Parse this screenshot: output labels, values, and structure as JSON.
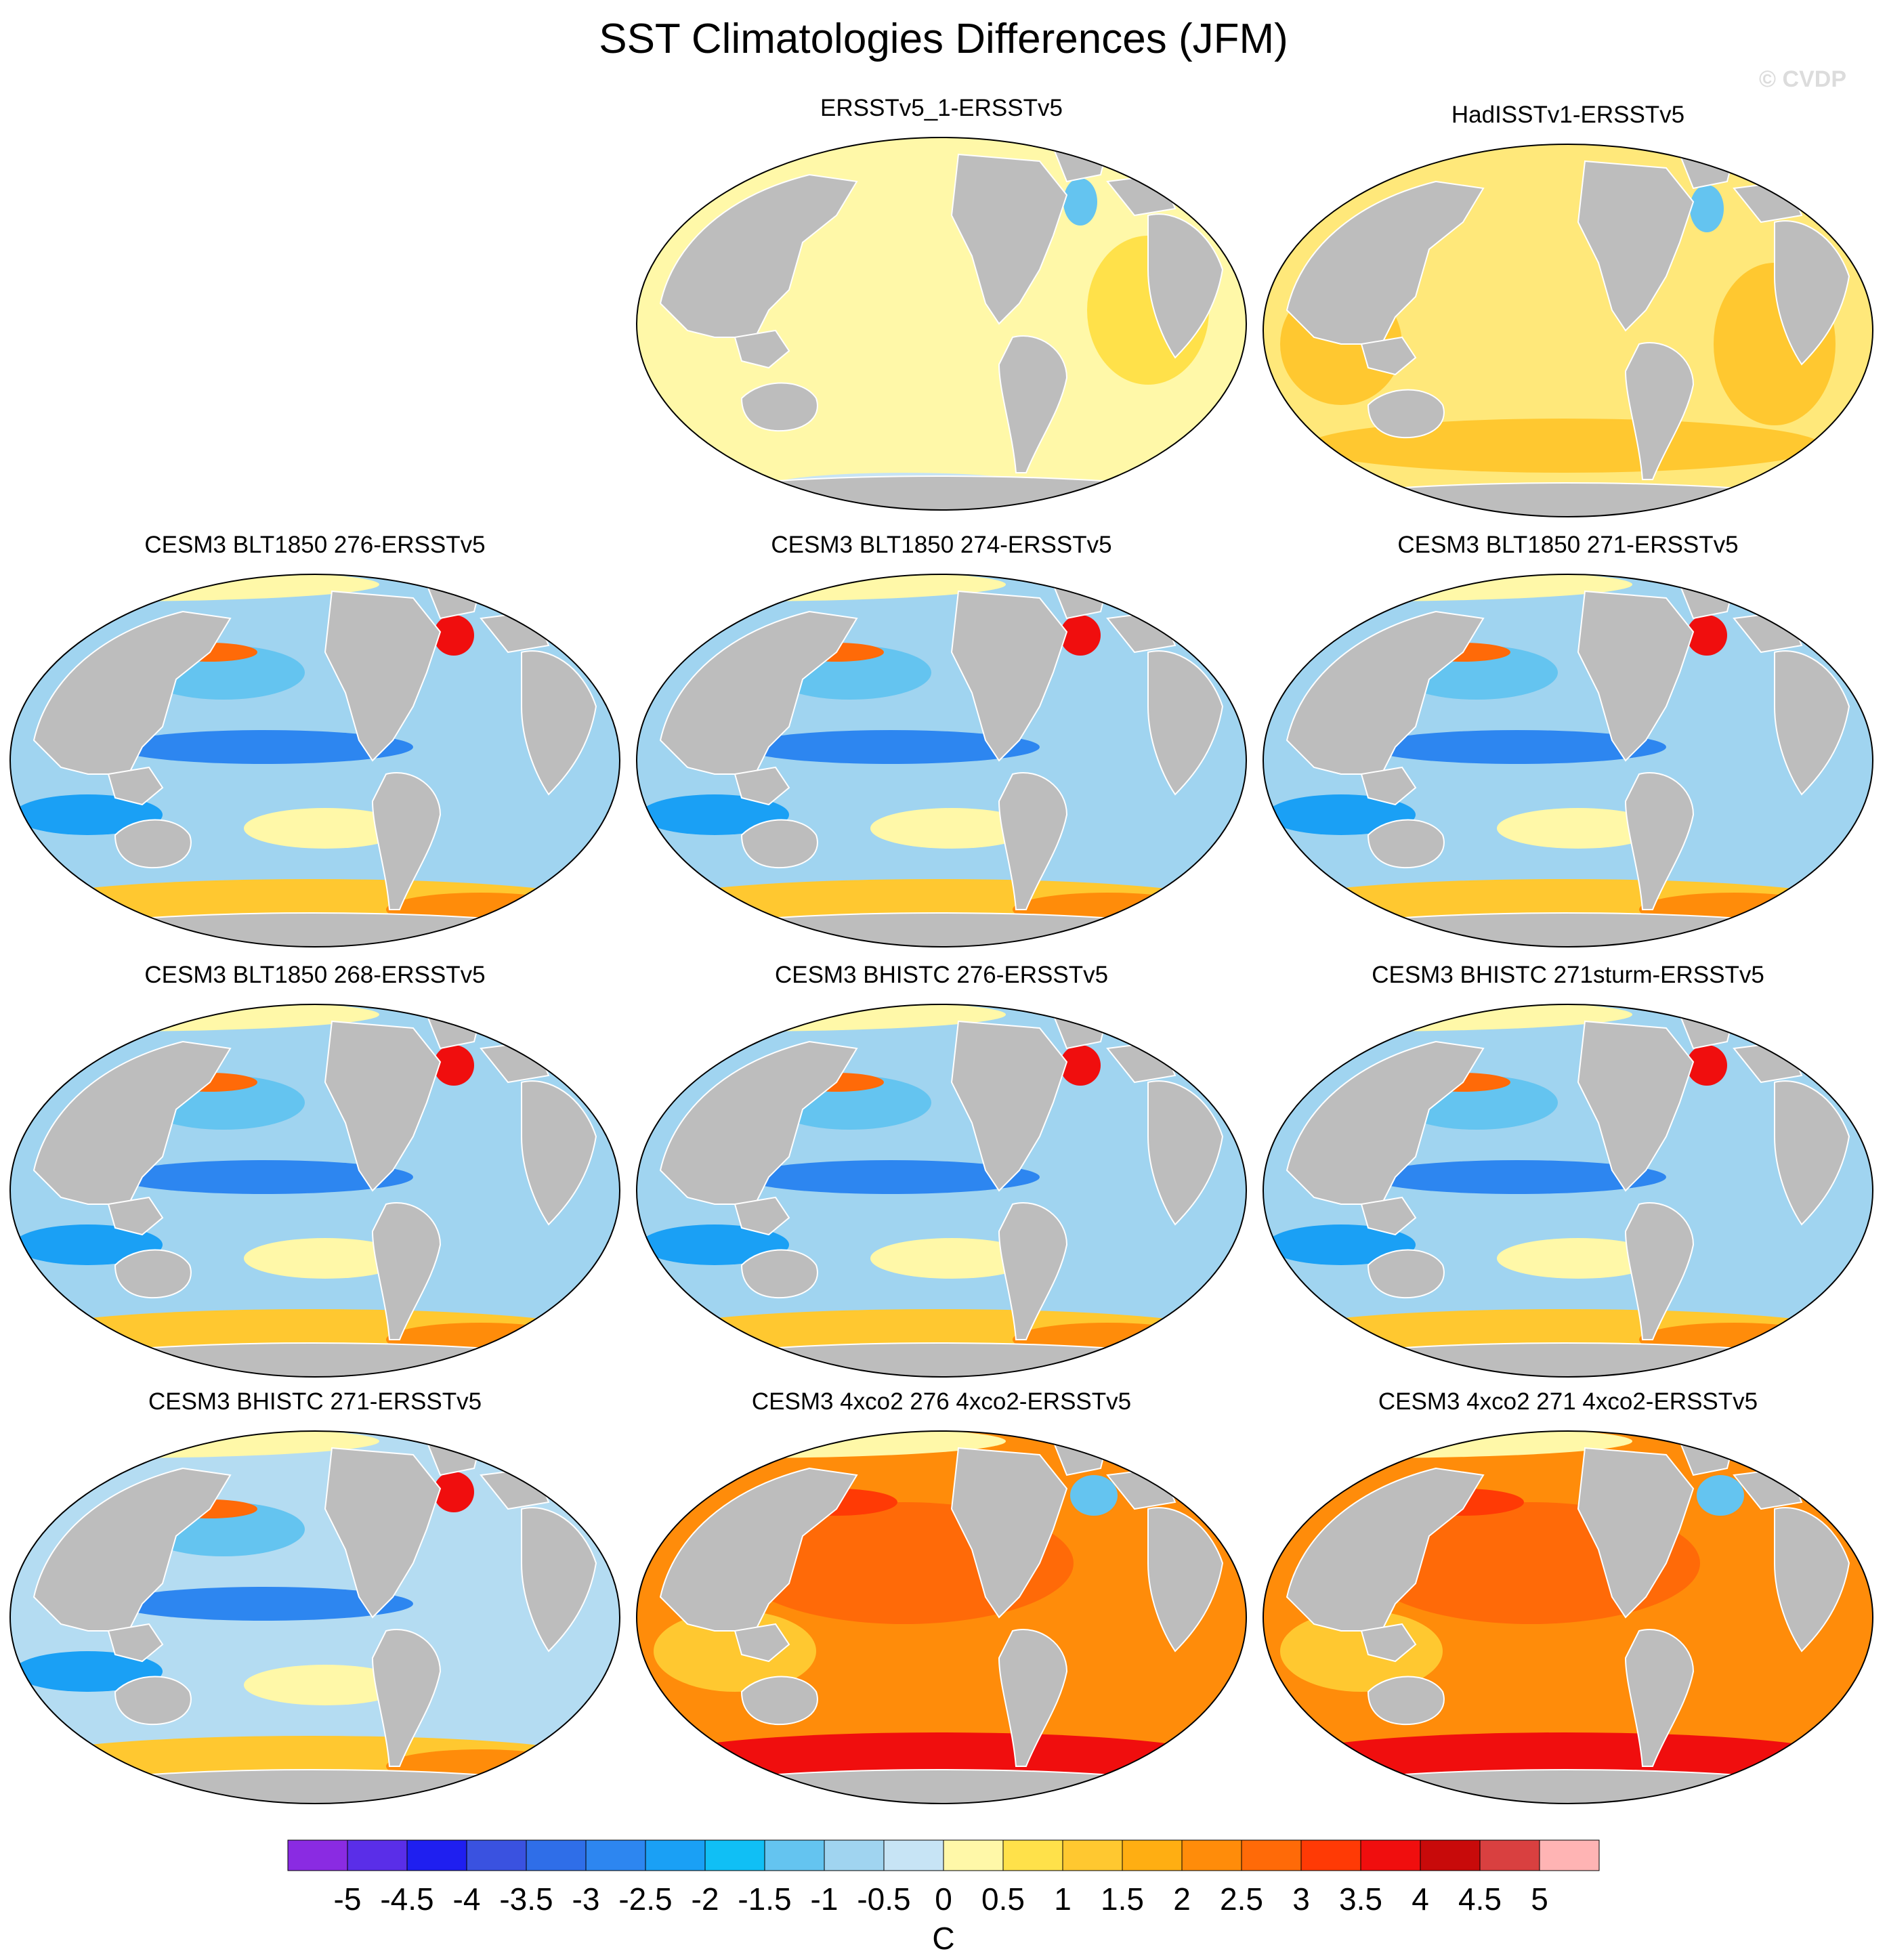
{
  "title": "SST Climatologies Differences (JFM)",
  "watermark": "© CVDP",
  "units": "C",
  "colorbar": {
    "labels": [
      "-5",
      "-4.5",
      "-4",
      "-3.5",
      "-3",
      "-2.5",
      "-2",
      "-1.5",
      "-1",
      "-0.5",
      "0",
      "0.5",
      "1",
      "1.5",
      "2",
      "2.5",
      "3",
      "3.5",
      "4",
      "4.5",
      "5"
    ],
    "colors": [
      "#8a2be2",
      "#5a2ee8",
      "#1f1ff0",
      "#3a52e0",
      "#2f6ee8",
      "#2d86f0",
      "#1aa0f5",
      "#10bff5",
      "#64c4f0",
      "#a0d4f0",
      "#c7e4f5",
      "#fff8a8",
      "#ffe14a",
      "#ffc830",
      "#ffae12",
      "#ff8c0a",
      "#ff6a08",
      "#ff3a05",
      "#f00e0e",
      "#c80a0a",
      "#d94040",
      "#ffb4b4"
    ]
  },
  "panels": [
    {
      "label": "ERSSTv5_1-ERSSTv5",
      "ocean": "#fff8a8",
      "tint": "#ffe14a",
      "regime": "obs1"
    },
    {
      "label": "HadISSTv1-ERSSTv5",
      "ocean": "#ffe87a",
      "tint": "#ffc830",
      "regime": "obs2"
    },
    {
      "label": "CESM3 BLT1850 276-ERSSTv5",
      "ocean": "#a0d4f0",
      "tint": "#64c4f0",
      "regime": "model"
    },
    {
      "label": "CESM3 BLT1850 274-ERSSTv5",
      "ocean": "#a0d4f0",
      "tint": "#64c4f0",
      "regime": "model"
    },
    {
      "label": "CESM3 BLT1850 271-ERSSTv5",
      "ocean": "#a0d4f0",
      "tint": "#64c4f0",
      "regime": "model"
    },
    {
      "label": "CESM3 BLT1850 268-ERSSTv5",
      "ocean": "#a0d4f0",
      "tint": "#64c4f0",
      "regime": "model"
    },
    {
      "label": "CESM3 BHISTC 276-ERSSTv5",
      "ocean": "#a0d4f0",
      "tint": "#64c4f0",
      "regime": "model"
    },
    {
      "label": "CESM3 BHISTC 271sturm-ERSSTv5",
      "ocean": "#a0d4f0",
      "tint": "#64c4f0",
      "regime": "model"
    },
    {
      "label": "CESM3 BHISTC 271-ERSSTv5",
      "ocean": "#b4dcf2",
      "tint": "#64c4f0",
      "regime": "model"
    },
    {
      "label": "CESM3 4xco2 276 4xco2-ERSSTv5",
      "ocean": "#ff8c0a",
      "tint": "#ff6a08",
      "regime": "warm"
    },
    {
      "label": "CESM3 4xco2 271 4xco2-ERSSTv5",
      "ocean": "#ff8c0a",
      "tint": "#ff6a08",
      "regime": "warm"
    }
  ]
}
